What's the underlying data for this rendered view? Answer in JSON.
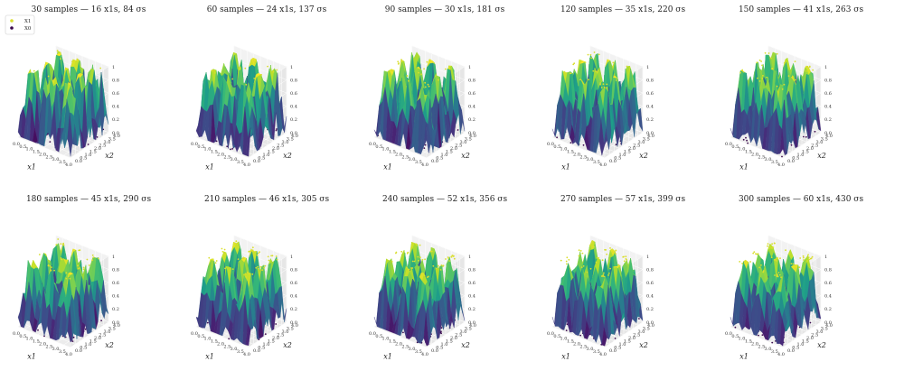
{
  "figure": {
    "legend": [
      {
        "label": "X1",
        "color": "#d9de2e"
      },
      {
        "label": "X0",
        "color": "#3b0a4d"
      }
    ]
  },
  "axes": {
    "xlabel": "x1",
    "ylabel": "x2",
    "x_ticks": [
      "0.0",
      "0.5",
      "1.0",
      "1.5",
      "2.0",
      "2.5",
      "3.0",
      "3.5",
      "4.0"
    ],
    "y_ticks": [
      "0.0",
      "0.5",
      "1.0",
      "1.5",
      "2.0",
      "2.5",
      "3.0",
      "3.5",
      "4.0"
    ],
    "z_ticks": [
      "0.0",
      "0.2",
      "0.4",
      "0.6",
      "0.8",
      "1"
    ]
  },
  "colors": {
    "surface_low": "#440154",
    "surface_mid": "#21918c",
    "surface_high": "#fde725",
    "pane": "#ececec",
    "grid": "#ffffff"
  },
  "chart_data": [
    {
      "type": "surface3d",
      "title": "30 samples — 16 x1s, 84 σs",
      "samples": 30,
      "x1s": 16,
      "sigmas": 84,
      "xlim": [
        0,
        4
      ],
      "ylim": [
        0,
        4
      ],
      "zlim": [
        0,
        1
      ]
    },
    {
      "type": "surface3d",
      "title": "60 samples — 24 x1s, 137 σs",
      "samples": 60,
      "x1s": 24,
      "sigmas": 137,
      "xlim": [
        0,
        4
      ],
      "ylim": [
        0,
        4
      ],
      "zlim": [
        0,
        1
      ]
    },
    {
      "type": "surface3d",
      "title": "90 samples — 30 x1s, 181 σs",
      "samples": 90,
      "x1s": 30,
      "sigmas": 181,
      "xlim": [
        0,
        4
      ],
      "ylim": [
        0,
        4
      ],
      "zlim": [
        0,
        1
      ]
    },
    {
      "type": "surface3d",
      "title": "120 samples — 35 x1s, 220 σs",
      "samples": 120,
      "x1s": 35,
      "sigmas": 220,
      "xlim": [
        0,
        4
      ],
      "ylim": [
        0,
        4
      ],
      "zlim": [
        0,
        1
      ]
    },
    {
      "type": "surface3d",
      "title": "150 samples — 41 x1s, 263 σs",
      "samples": 150,
      "x1s": 41,
      "sigmas": 263,
      "xlim": [
        0,
        4
      ],
      "ylim": [
        0,
        4
      ],
      "zlim": [
        0,
        1
      ]
    },
    {
      "type": "surface3d",
      "title": "180 samples — 45 x1s, 290 σs",
      "samples": 180,
      "x1s": 45,
      "sigmas": 290,
      "xlim": [
        0,
        4
      ],
      "ylim": [
        0,
        4
      ],
      "zlim": [
        0,
        1
      ]
    },
    {
      "type": "surface3d",
      "title": "210 samples — 46 x1s, 305 σs",
      "samples": 210,
      "x1s": 46,
      "sigmas": 305,
      "xlim": [
        0,
        4
      ],
      "ylim": [
        0,
        4
      ],
      "zlim": [
        0,
        1
      ]
    },
    {
      "type": "surface3d",
      "title": "240 samples — 52 x1s, 356 σs",
      "samples": 240,
      "x1s": 52,
      "sigmas": 356,
      "xlim": [
        0,
        4
      ],
      "ylim": [
        0,
        4
      ],
      "zlim": [
        0,
        1
      ]
    },
    {
      "type": "surface3d",
      "title": "270 samples — 57 x1s, 399 σs",
      "samples": 270,
      "x1s": 57,
      "sigmas": 399,
      "xlim": [
        0,
        4
      ],
      "ylim": [
        0,
        4
      ],
      "zlim": [
        0,
        1
      ]
    },
    {
      "type": "surface3d",
      "title": "300 samples — 60 x1s, 430 σs",
      "samples": 300,
      "x1s": 60,
      "sigmas": 430,
      "xlim": [
        0,
        4
      ],
      "ylim": [
        0,
        4
      ],
      "zlim": [
        0,
        1
      ]
    }
  ]
}
